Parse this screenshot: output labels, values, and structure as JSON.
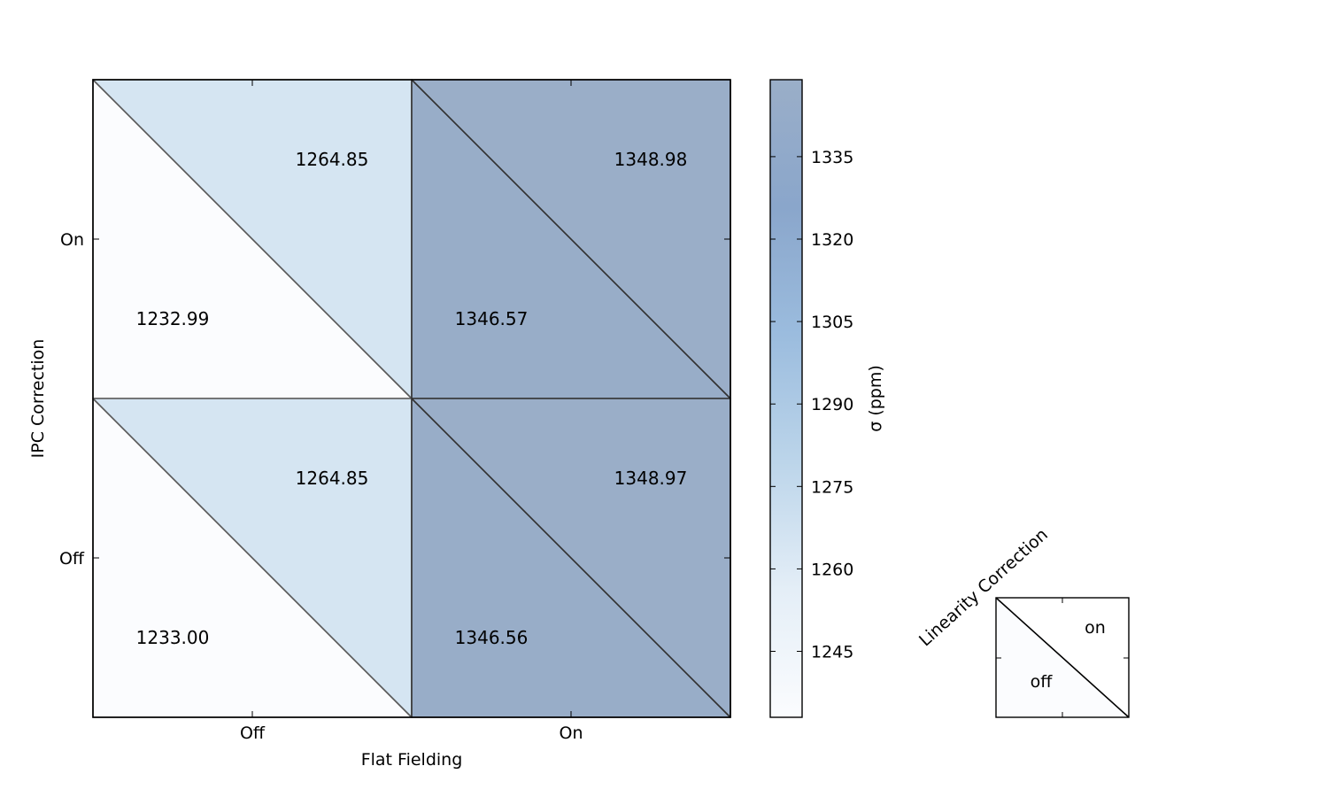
{
  "chart_data": {
    "type": "heatmap",
    "xlabel": "Flat Fielding",
    "ylabel": "IPC Correction",
    "x_categories": [
      "Off",
      "On"
    ],
    "y_categories": [
      "Off",
      "On"
    ],
    "cells": [
      {
        "flat_fielding": "Off",
        "ipc": "On",
        "linearity_off": 1232.99,
        "linearity_on": 1264.85,
        "label_off": "1232.99",
        "label_on": "1264.85"
      },
      {
        "flat_fielding": "On",
        "ipc": "On",
        "linearity_off": 1346.57,
        "linearity_on": 1348.98,
        "label_off": "1346.57",
        "label_on": "1348.98"
      },
      {
        "flat_fielding": "Off",
        "ipc": "Off",
        "linearity_off": 1233.0,
        "linearity_on": 1264.85,
        "label_off": "1233.00",
        "label_on": "1264.85"
      },
      {
        "flat_fielding": "On",
        "ipc": "Off",
        "linearity_off": 1346.56,
        "linearity_on": 1348.97,
        "label_off": "1346.56",
        "label_on": "1348.97"
      }
    ],
    "colorbar": {
      "label": "σ (ppm)",
      "range": [
        1233.0,
        1349.0
      ],
      "ticks": [
        1245,
        1260,
        1275,
        1290,
        1305,
        1320,
        1335
      ],
      "tick_labels": [
        "1245",
        "1260",
        "1275",
        "1290",
        "1305",
        "1320",
        "1335"
      ],
      "colormap": [
        "#fbfcfe",
        "#e4eef7",
        "#bcd5ea",
        "#9bbcde",
        "#8aa6cb",
        "#9aaec8"
      ]
    },
    "legend": {
      "title": "Linearity Correction",
      "on_label": "on",
      "off_label": "off"
    }
  }
}
